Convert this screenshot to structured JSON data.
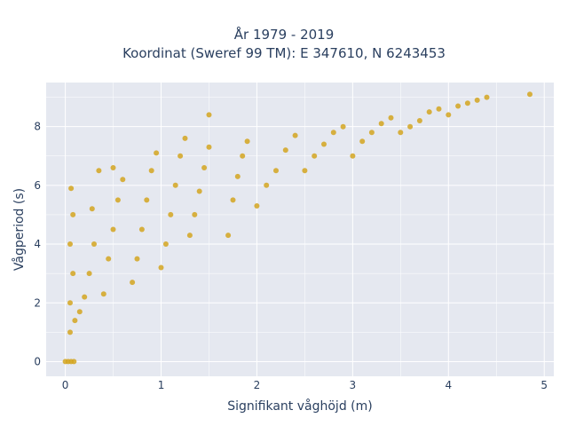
{
  "chart_data": {
    "type": "scatter",
    "title": "År 1979 - 2019",
    "subtitle": "Koordinat (Sweref 99 TM): E 347610, N 6243453",
    "xlabel": "Signifikant våghöjd (m)",
    "ylabel": "Vågperiod (s)",
    "xlim": [
      -0.2,
      5.1
    ],
    "ylim": [
      -0.5,
      9.5
    ],
    "x_ticks": [
      "0",
      "1",
      "2",
      "3",
      "4",
      "5"
    ],
    "y_ticks": [
      "0",
      "2",
      "4",
      "6",
      "8"
    ],
    "grid": true,
    "plot_background": "#e5e8f0",
    "marker_color": "#d4a520",
    "series": [
      {
        "points": [
          [
            0.0,
            0.0
          ],
          [
            0.03,
            0.0
          ],
          [
            0.06,
            0.0
          ],
          [
            0.09,
            0.0
          ],
          [
            0.05,
            1.0
          ],
          [
            0.1,
            1.4
          ],
          [
            0.05,
            2.0
          ],
          [
            0.08,
            3.0
          ],
          [
            0.05,
            4.0
          ],
          [
            0.08,
            5.0
          ],
          [
            0.06,
            5.9
          ],
          [
            0.15,
            1.7
          ],
          [
            0.2,
            2.2
          ],
          [
            0.25,
            3.0
          ],
          [
            0.3,
            4.0
          ],
          [
            0.28,
            5.2
          ],
          [
            0.35,
            6.5
          ],
          [
            0.4,
            2.3
          ],
          [
            0.45,
            3.5
          ],
          [
            0.5,
            4.5
          ],
          [
            0.55,
            5.5
          ],
          [
            0.6,
            6.2
          ],
          [
            0.5,
            6.6
          ],
          [
            0.7,
            2.7
          ],
          [
            0.75,
            3.5
          ],
          [
            0.8,
            4.5
          ],
          [
            0.85,
            5.5
          ],
          [
            0.9,
            6.5
          ],
          [
            0.95,
            7.1
          ],
          [
            1.0,
            3.2
          ],
          [
            1.05,
            4.0
          ],
          [
            1.1,
            5.0
          ],
          [
            1.15,
            6.0
          ],
          [
            1.2,
            7.0
          ],
          [
            1.25,
            7.6
          ],
          [
            1.3,
            4.3
          ],
          [
            1.35,
            5.0
          ],
          [
            1.4,
            5.8
          ],
          [
            1.45,
            6.6
          ],
          [
            1.5,
            7.3
          ],
          [
            1.5,
            8.4
          ],
          [
            1.7,
            4.3
          ],
          [
            1.75,
            5.5
          ],
          [
            1.8,
            6.3
          ],
          [
            1.85,
            7.0
          ],
          [
            1.9,
            7.5
          ],
          [
            2.0,
            5.3
          ],
          [
            2.1,
            6.0
          ],
          [
            2.2,
            6.5
          ],
          [
            2.3,
            7.2
          ],
          [
            2.4,
            7.7
          ],
          [
            2.5,
            6.5
          ],
          [
            2.6,
            7.0
          ],
          [
            2.7,
            7.4
          ],
          [
            2.8,
            7.8
          ],
          [
            2.9,
            8.0
          ],
          [
            3.0,
            7.0
          ],
          [
            3.1,
            7.5
          ],
          [
            3.2,
            7.8
          ],
          [
            3.3,
            8.1
          ],
          [
            3.4,
            8.3
          ],
          [
            3.5,
            7.8
          ],
          [
            3.6,
            8.0
          ],
          [
            3.7,
            8.2
          ],
          [
            3.8,
            8.5
          ],
          [
            3.9,
            8.6
          ],
          [
            4.0,
            8.4
          ],
          [
            4.1,
            8.7
          ],
          [
            4.2,
            8.8
          ],
          [
            4.3,
            8.9
          ],
          [
            4.4,
            9.0
          ],
          [
            4.85,
            9.1
          ]
        ]
      }
    ]
  }
}
